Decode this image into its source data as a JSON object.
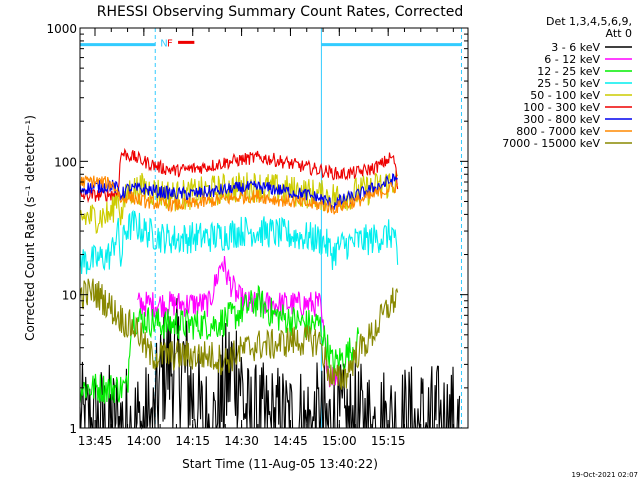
{
  "chart_data": {
    "type": "line",
    "title": "RHESSI Observing Summary Count Rates, Corrected",
    "ylabel": "Corrected Count Rate (s⁻¹ detector⁻¹)",
    "xlabel": "Start Time (11-Aug-05 13:40:22)",
    "x_ticks": [
      "13:45",
      "14:00",
      "14:15",
      "14:30",
      "14:45",
      "15:00",
      "15:15"
    ],
    "y_ticks": [
      "1",
      "10",
      "100",
      "1000"
    ],
    "y_scale": "log",
    "xlim_min": [
      40.4,
      159.5
    ],
    "ylim": [
      1,
      1000
    ],
    "timestamp": "19-Oct-2021 02:07",
    "legend_header": [
      "Det 1,3,4,5,6,9,",
      "Att 0"
    ],
    "annotations": {
      "night_label": "N",
      "flare_label": "F",
      "night_color": "#33ccff",
      "flare_color": "#ee0000",
      "night_spans_min": [
        [
          40.4,
          63.5
        ],
        [
          114.5,
          157.5
        ]
      ],
      "night_level": 750,
      "flare_span_min": [
        70.5,
        75.5
      ],
      "flare_level": 780
    },
    "series": [
      {
        "name": "3 - 6 keV",
        "color": "#000000",
        "noise": 0.5,
        "points": [
          [
            40.4,
            1
          ],
          [
            55,
            1
          ],
          [
            63,
            1
          ],
          [
            66,
            3
          ],
          [
            72,
            3
          ],
          [
            78,
            1
          ],
          [
            82,
            1
          ],
          [
            86,
            2.5
          ],
          [
            89,
            3
          ],
          [
            92,
            1
          ],
          [
            100,
            1
          ],
          [
            110,
            1
          ],
          [
            114,
            1
          ],
          [
            120,
            1
          ],
          [
            130,
            1
          ],
          [
            157,
            1
          ]
        ]
      },
      {
        "name": "6 - 12 keV",
        "color": "#ff00ff",
        "noise": 0.1,
        "points": [
          [
            58,
            8.5
          ],
          [
            62,
            8.5
          ],
          [
            70,
            8.5
          ],
          [
            80,
            8.5
          ],
          [
            84,
            18
          ],
          [
            86,
            13
          ],
          [
            89,
            9.5
          ],
          [
            92,
            8.5
          ],
          [
            100,
            8.5
          ],
          [
            114,
            8.5
          ],
          [
            116,
            3.5
          ],
          [
            117,
            2.5
          ],
          [
            120,
            2.5
          ]
        ]
      },
      {
        "name": "12 - 25 keV",
        "color": "#00ee00",
        "noise": 0.12,
        "points": [
          [
            40.4,
            2
          ],
          [
            55,
            2
          ],
          [
            56,
            6.5
          ],
          [
            60,
            6.5
          ],
          [
            66,
            6
          ],
          [
            75,
            6
          ],
          [
            82,
            6
          ],
          [
            85,
            6.5
          ],
          [
            88,
            7
          ],
          [
            95,
            9
          ],
          [
            100,
            7
          ],
          [
            110,
            6
          ],
          [
            114,
            6
          ],
          [
            118,
            3
          ],
          [
            122,
            3.5
          ],
          [
            126,
            4.5
          ]
        ]
      },
      {
        "name": "25 - 50 keV",
        "color": "#00eeee",
        "noise": 0.12,
        "points": [
          [
            40.4,
            18
          ],
          [
            45,
            18
          ],
          [
            50,
            20
          ],
          [
            52,
            32
          ],
          [
            53,
            17
          ],
          [
            54,
            30
          ],
          [
            57,
            34
          ],
          [
            60,
            30
          ],
          [
            65,
            27
          ],
          [
            70,
            26
          ],
          [
            75,
            27
          ],
          [
            80,
            27
          ],
          [
            85,
            28
          ],
          [
            90,
            30
          ],
          [
            95,
            30
          ],
          [
            100,
            29
          ],
          [
            105,
            28
          ],
          [
            110,
            27
          ],
          [
            114,
            26
          ],
          [
            116,
            24
          ],
          [
            118,
            20
          ],
          [
            120,
            23
          ],
          [
            125,
            25
          ],
          [
            130,
            26
          ],
          [
            135,
            28
          ],
          [
            137,
            29
          ],
          [
            138,
            13
          ]
        ]
      },
      {
        "name": "50 - 100 keV",
        "color": "#cccc00",
        "noise": 0.12,
        "points": [
          [
            40.4,
            38
          ],
          [
            45,
            38
          ],
          [
            50,
            40
          ],
          [
            52,
            60
          ],
          [
            53,
            38
          ],
          [
            55,
            60
          ],
          [
            60,
            63
          ],
          [
            65,
            58
          ],
          [
            70,
            55
          ],
          [
            75,
            57
          ],
          [
            80,
            60
          ],
          [
            85,
            62
          ],
          [
            90,
            64
          ],
          [
            95,
            65
          ],
          [
            100,
            62
          ],
          [
            105,
            60
          ],
          [
            110,
            58
          ],
          [
            115,
            55
          ],
          [
            120,
            54
          ],
          [
            125,
            58
          ],
          [
            130,
            62
          ],
          [
            135,
            68
          ],
          [
            138,
            72
          ]
        ]
      },
      {
        "name": "100 - 300 keV",
        "color": "#ee0000",
        "noise": 0.05,
        "points": [
          [
            40.4,
            55
          ],
          [
            48,
            56
          ],
          [
            52,
            58
          ],
          [
            53,
            115
          ],
          [
            56,
            110
          ],
          [
            60,
            100
          ],
          [
            65,
            90
          ],
          [
            70,
            85
          ],
          [
            75,
            88
          ],
          [
            80,
            92
          ],
          [
            85,
            98
          ],
          [
            90,
            103
          ],
          [
            95,
            107
          ],
          [
            100,
            103
          ],
          [
            105,
            96
          ],
          [
            110,
            90
          ],
          [
            115,
            85
          ],
          [
            120,
            80
          ],
          [
            125,
            82
          ],
          [
            130,
            88
          ],
          [
            133,
            95
          ],
          [
            136,
            108
          ],
          [
            137,
            100
          ],
          [
            138,
            60
          ]
        ]
      },
      {
        "name": "300 - 800 keV",
        "color": "#0000ee",
        "noise": 0.05,
        "points": [
          [
            40.4,
            62
          ],
          [
            45,
            64
          ],
          [
            50,
            66
          ],
          [
            52,
            62
          ],
          [
            53,
            56
          ],
          [
            55,
            62
          ],
          [
            60,
            62
          ],
          [
            65,
            59
          ],
          [
            70,
            57
          ],
          [
            75,
            57
          ],
          [
            80,
            59
          ],
          [
            85,
            61
          ],
          [
            90,
            63
          ],
          [
            95,
            64
          ],
          [
            100,
            62
          ],
          [
            105,
            59
          ],
          [
            110,
            56
          ],
          [
            115,
            52
          ],
          [
            118,
            47
          ],
          [
            120,
            50
          ],
          [
            125,
            55
          ],
          [
            130,
            62
          ],
          [
            135,
            70
          ],
          [
            138,
            75
          ]
        ]
      },
      {
        "name": "800 - 7000 keV",
        "color": "#ff8800",
        "noise": 0.05,
        "points": [
          [
            40.4,
            70
          ],
          [
            45,
            71
          ],
          [
            50,
            68
          ],
          [
            52,
            60
          ],
          [
            53,
            50
          ],
          [
            55,
            55
          ],
          [
            60,
            50
          ],
          [
            65,
            48
          ],
          [
            70,
            47
          ],
          [
            75,
            48
          ],
          [
            80,
            50
          ],
          [
            85,
            52
          ],
          [
            90,
            54
          ],
          [
            95,
            55
          ],
          [
            100,
            52
          ],
          [
            105,
            50
          ],
          [
            110,
            48
          ],
          [
            115,
            47
          ],
          [
            118,
            44
          ],
          [
            120,
            46
          ],
          [
            125,
            50
          ],
          [
            130,
            55
          ],
          [
            135,
            62
          ],
          [
            138,
            65
          ]
        ]
      },
      {
        "name": "7000 - 15000 keV",
        "color": "#888800",
        "noise": 0.12,
        "points": [
          [
            40.4,
            10
          ],
          [
            45,
            10.5
          ],
          [
            48,
            9
          ],
          [
            52,
            7
          ],
          [
            55,
            6
          ],
          [
            58,
            5.5
          ],
          [
            60,
            4.2
          ],
          [
            62,
            3.5
          ],
          [
            65,
            3.5
          ],
          [
            70,
            3.5
          ],
          [
            75,
            3.5
          ],
          [
            80,
            3.5
          ],
          [
            85,
            3.2
          ],
          [
            90,
            3.8
          ],
          [
            95,
            4.2
          ],
          [
            100,
            4.2
          ],
          [
            105,
            4.5
          ],
          [
            110,
            4.5
          ],
          [
            114,
            4.5
          ],
          [
            116,
            3
          ],
          [
            118,
            2.3
          ],
          [
            120,
            2.3
          ],
          [
            122,
            2.5
          ],
          [
            125,
            3.5
          ],
          [
            130,
            5
          ],
          [
            135,
            8
          ],
          [
            138,
            10
          ]
        ]
      }
    ]
  }
}
